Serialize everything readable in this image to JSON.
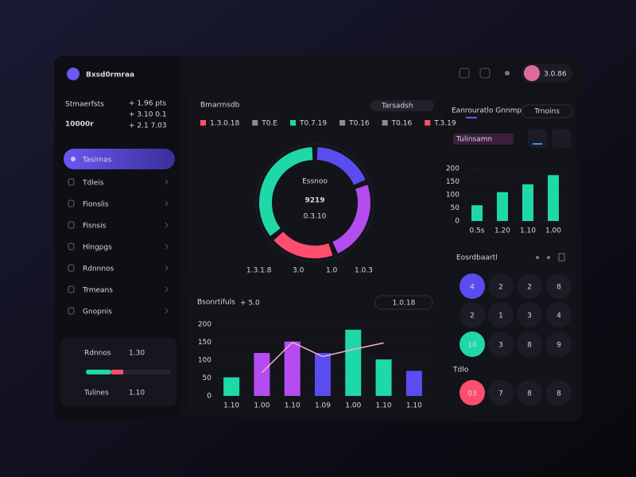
{
  "brand": "Bxsd0rmraa",
  "stat": {
    "label": "Stmaerfsts",
    "value": "10000r",
    "notes": [
      "+ 1.96 pts",
      "+ 3.10 0.1",
      "+ 2.1 7.03"
    ]
  },
  "nav": [
    "Tasirnas",
    "Tdleis",
    "Fionslis",
    "Fisnsis",
    "Hlngpgs",
    "Rdnnnos",
    "Trmeans",
    "Gnopnis"
  ],
  "summary": {
    "rows": [
      {
        "label": "Rdnnos",
        "value": "1.30",
        "color": "#1fd8a8"
      },
      {
        "label": "Tulines",
        "value": "1.10",
        "color": "#6c5cf5"
      }
    ]
  },
  "topbar": {
    "user": "3.0.86"
  },
  "donut_card": {
    "title": "Bmarrnsdb",
    "search": "Tarsadsh",
    "legend": [
      {
        "label": "1.3.0.18",
        "color": "#ff4d6d"
      },
      {
        "label": "T0.E",
        "color": "#8a8a99"
      },
      {
        "label": "T0.7.19",
        "color": "#1fd8a8"
      },
      {
        "label": "T0.16",
        "color": "#8a8a99"
      },
      {
        "label": "T0.16",
        "color": "#8a8a99"
      },
      {
        "label": "T.3.19",
        "color": "#ff4d6d"
      }
    ],
    "segments": [
      {
        "value": 19,
        "color": "#5b4cf0"
      },
      {
        "value": 25,
        "color": "#b44cf0"
      },
      {
        "value": 20,
        "color": "#ff4d6d"
      },
      {
        "value": 36,
        "color": "#1fd8a8"
      }
    ],
    "center_label": "Essnoo",
    "center_value": "9219",
    "center_sub": "0.3.10",
    "footer": [
      {
        "label": "1.3.1.8",
        "color": "#ff4d8d"
      },
      {
        "label": "3.0",
        "color": "#1fd8a8"
      },
      {
        "label": "1.0",
        "color": "#b44cf0"
      },
      {
        "label": "1.0.3",
        "color": "#ff4d8d"
      }
    ]
  },
  "bar_card": {
    "title": "Bsonrtifuls",
    "badge": "+ 5.0",
    "button": "1.0.18",
    "ylim": [
      0,
      200
    ],
    "yticks": [
      0,
      50,
      100,
      150,
      200
    ],
    "categories": [
      "1.10",
      "1.00",
      "1.10",
      "1.09",
      "1.00",
      "1.10",
      "1.10"
    ],
    "values": [
      52,
      120,
      152,
      120,
      185,
      102,
      70
    ],
    "colors": [
      "#1fd8a8",
      "#b44cf0",
      "#b44cf0",
      "#5b4cf0",
      "#1fd8a8",
      "#1fd8a8",
      "#5b4cf0"
    ],
    "line": [
      null,
      65,
      150,
      110,
      130,
      148,
      null
    ],
    "line_color": "#f3b3c3"
  },
  "growth_card": {
    "title": "Eanrouratlo Gnnmp",
    "button": "Trnoins",
    "label": "Tulinsamn",
    "ylim": [
      0,
      200
    ],
    "yticks": [
      0,
      50,
      100,
      150,
      200
    ],
    "categories": [
      "0.5s",
      "1.20",
      "1.10",
      "1.00"
    ],
    "values": [
      60,
      110,
      140,
      175
    ],
    "color": "#1fd8a8"
  },
  "grid_card": {
    "title": "Eosrdbaartl",
    "note": "Tdlo",
    "cells": [
      [
        {
          "text": "4",
          "color": "#5b4cf0"
        },
        {
          "text": "2",
          "color": null
        },
        {
          "text": "2",
          "color": null
        },
        {
          "text": "8",
          "color": null
        }
      ],
      [
        {
          "text": "2",
          "color": null
        },
        {
          "text": "1",
          "color": null
        },
        {
          "text": "3",
          "color": null
        },
        {
          "text": "4",
          "color": null
        }
      ],
      [
        {
          "text": "10",
          "color": "#1fd8a8"
        },
        {
          "text": "3",
          "color": null
        },
        {
          "text": "8",
          "color": null
        },
        {
          "text": "9",
          "color": null
        }
      ],
      [
        {
          "text": "03",
          "color": "#ff4d6d"
        },
        {
          "text": "7",
          "color": null
        },
        {
          "text": "8",
          "color": null
        },
        {
          "text": "8",
          "color": null
        }
      ]
    ]
  }
}
